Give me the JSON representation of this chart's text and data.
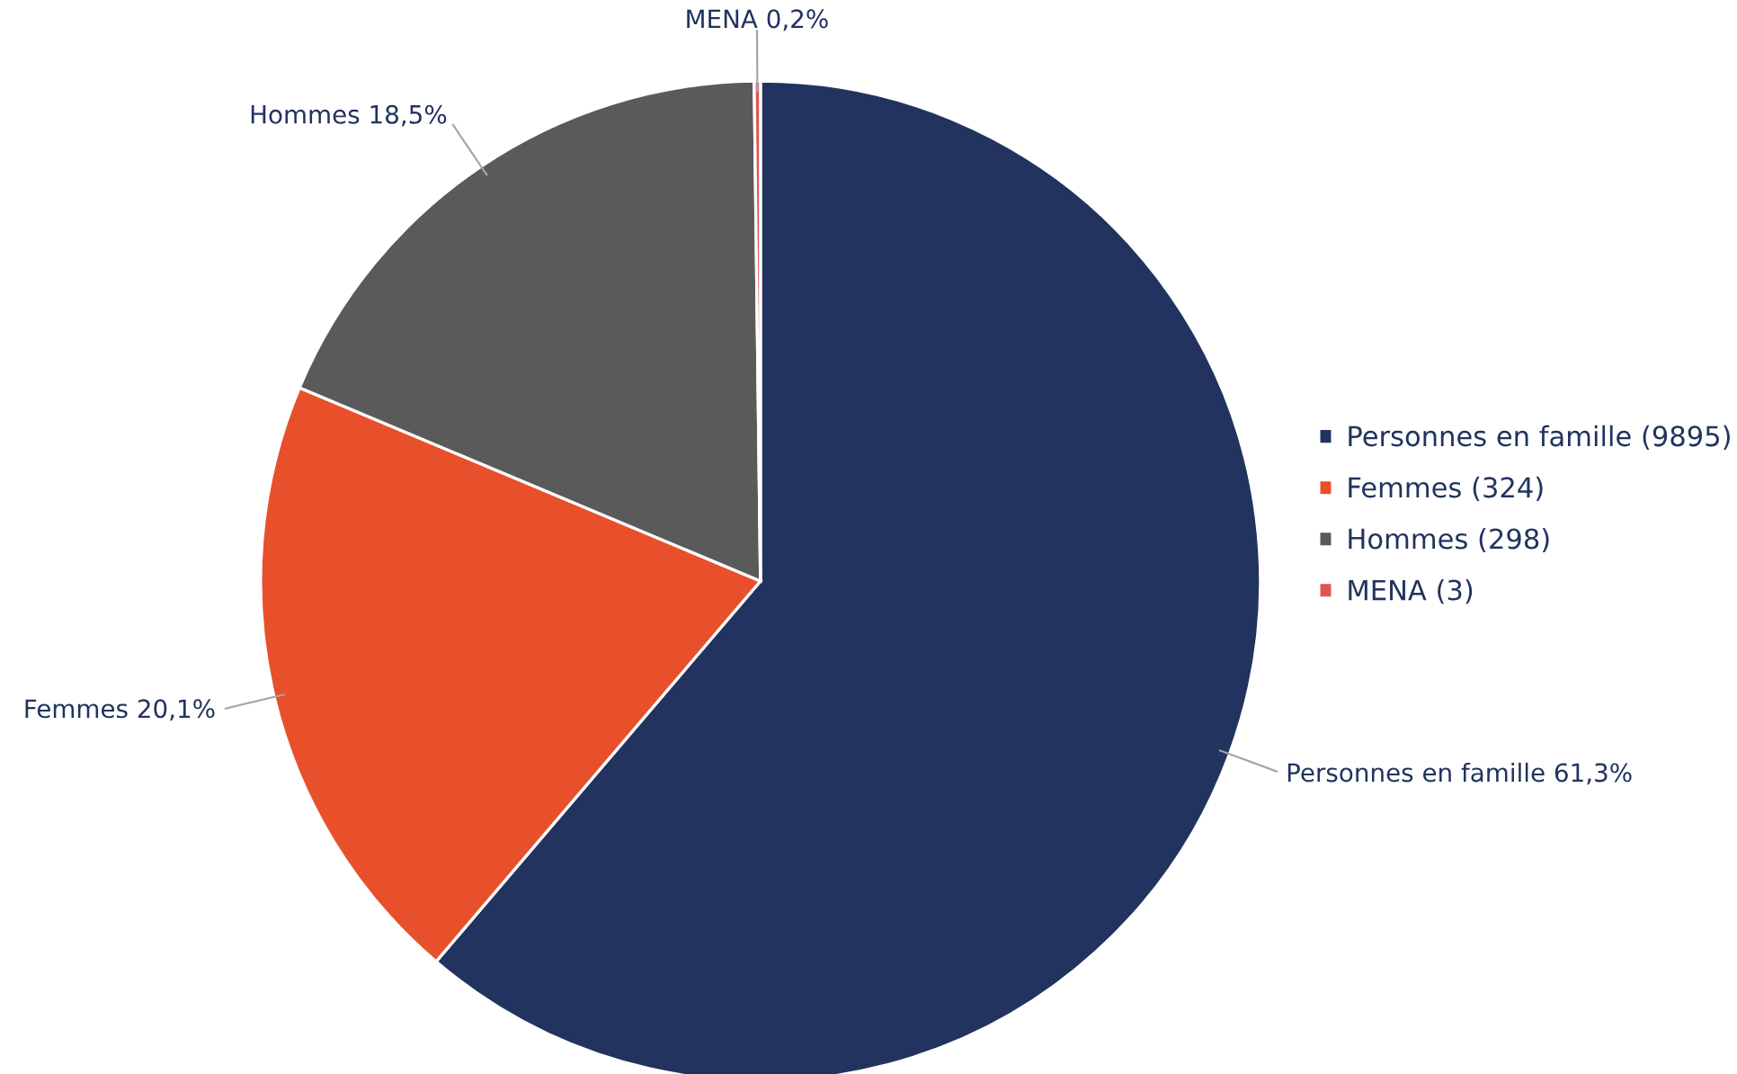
{
  "chart_data": {
    "type": "pie",
    "categories": [
      "Personnes en famille (9895)",
      "Femmes (324)",
      "Hommes (298)",
      "MENA (3)"
    ],
    "values": [
      61.3,
      20.1,
      18.5,
      0.2
    ],
    "colors": [
      "#21335e",
      "#e8502b",
      "#5a5a5a",
      "#e05550"
    ],
    "value_labels": [
      "Personnes en famille 61,3%",
      "Femmes 20,1%",
      "Hommes 18,5%",
      "MENA 0,2%"
    ],
    "legend": "right"
  }
}
